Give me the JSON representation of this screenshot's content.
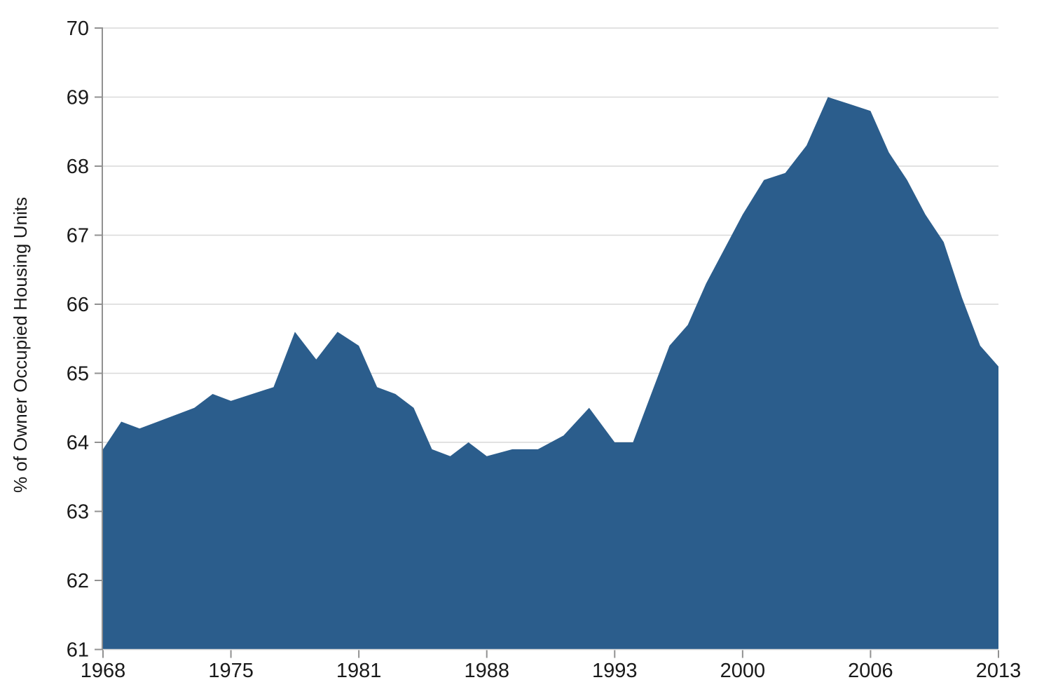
{
  "chart_data": {
    "type": "area",
    "title": "",
    "xlabel": "",
    "ylabel": "% of Owner Occupied Housing Units",
    "ylim": [
      61,
      70
    ],
    "y_tick_labels": [
      "61",
      "62",
      "63",
      "64",
      "65",
      "66",
      "67",
      "68",
      "69",
      "70"
    ],
    "x_tick_labels": [
      "1968",
      "1975",
      "1981",
      "1988",
      "1993",
      "2000",
      "2006",
      "2013"
    ],
    "x_ticks_evenly_spaced": true,
    "grid": "horizontal",
    "legend": "none",
    "series": [
      {
        "name": "Owner occupied housing units (%)",
        "x": [
          1968,
          1969,
          1970,
          1971,
          1972,
          1973,
          1974,
          1975,
          1976,
          1977,
          1978,
          1979,
          1980,
          1981,
          1982,
          1983,
          1984,
          1985,
          1986,
          1987,
          1988,
          1989,
          1990,
          1991,
          1992,
          1993,
          1994,
          1995,
          1996,
          1997,
          1998,
          1999,
          2000,
          2001,
          2002,
          2003,
          2004,
          2005,
          2006,
          2007,
          2008,
          2009,
          2010,
          2011,
          2012,
          2013
        ],
        "values": [
          63.9,
          64.3,
          64.2,
          64.3,
          64.4,
          64.5,
          64.7,
          64.6,
          64.7,
          64.8,
          65.6,
          65.2,
          65.6,
          65.4,
          64.8,
          64.7,
          64.5,
          63.9,
          63.8,
          64.0,
          63.8,
          63.9,
          63.9,
          64.1,
          64.5,
          64.0,
          64.0,
          64.7,
          65.4,
          65.7,
          66.3,
          66.8,
          67.3,
          67.8,
          67.9,
          68.3,
          69.0,
          68.9,
          68.8,
          68.2,
          67.8,
          67.3,
          66.9,
          66.1,
          65.4,
          65.1
        ]
      }
    ]
  },
  "colors": {
    "area_fill": "#2b5d8c",
    "gridline": "#d9d9d9",
    "axis": "#919191",
    "text": "#1a1a1a",
    "background": "#ffffff"
  }
}
